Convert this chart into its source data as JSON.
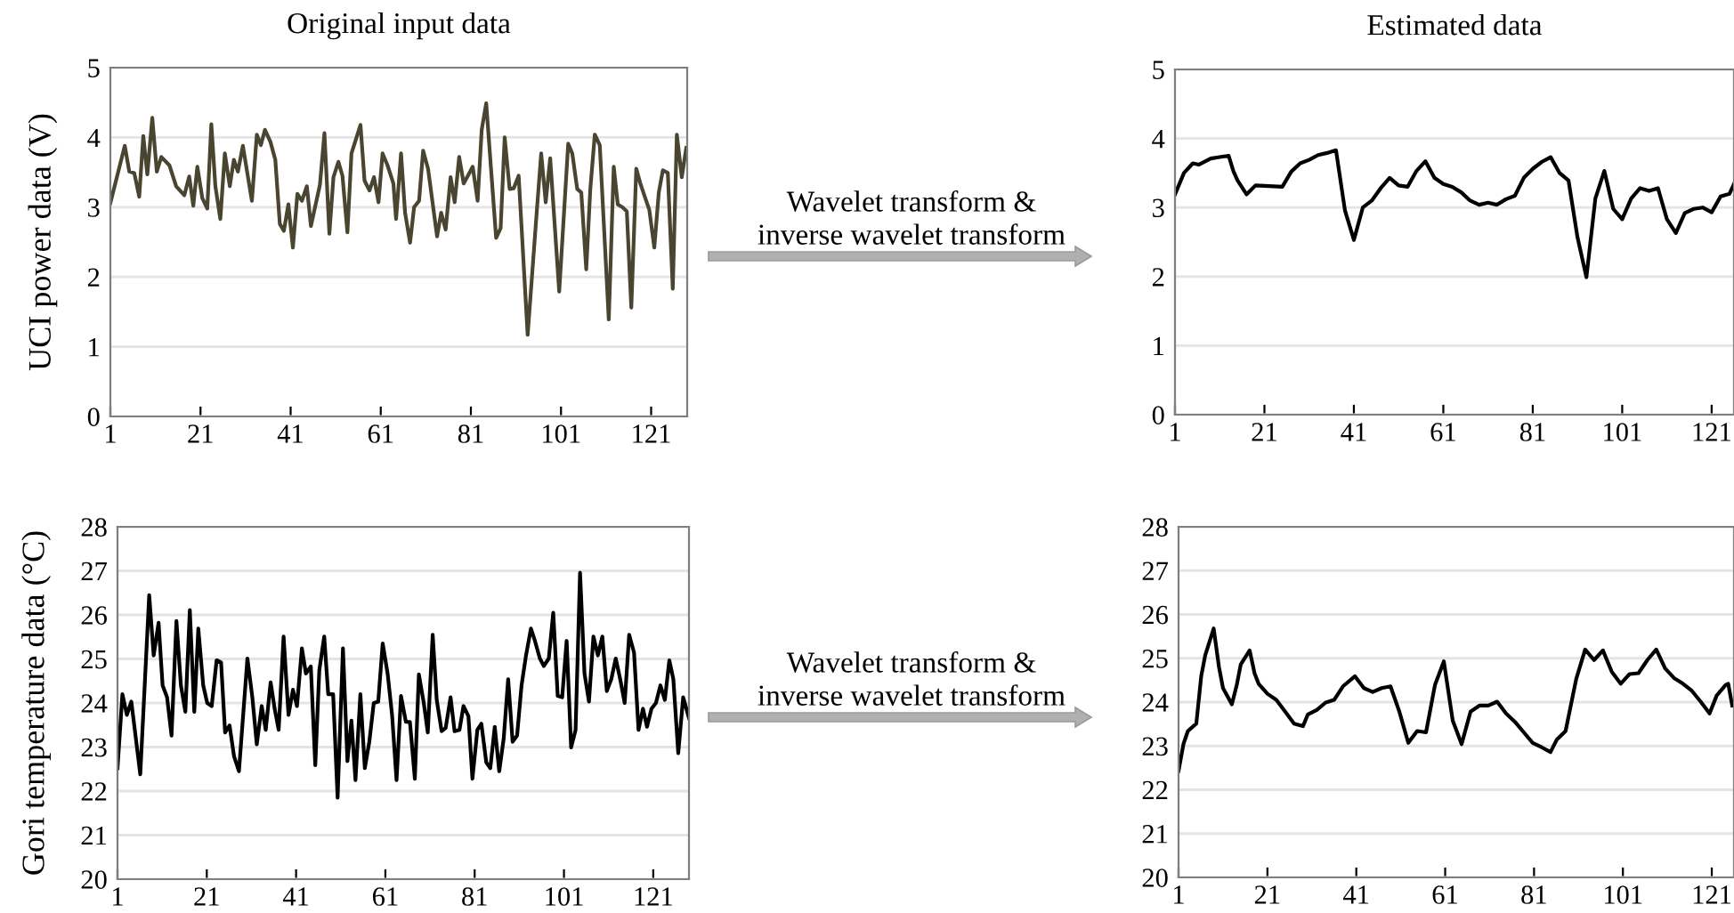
{
  "chart_data": [
    {
      "type": "line",
      "title": "Original input data",
      "ylabel": "UCI power data (V)",
      "annotations": [
        "Wavelet transform &\ninverse wavelet transform"
      ],
      "xlim": [
        1,
        129
      ],
      "ylim": [
        0,
        5
      ],
      "xticks": [
        1,
        21,
        41,
        61,
        81,
        101,
        121
      ],
      "yticks": [
        0,
        1,
        2,
        3,
        4,
        5
      ],
      "grid": "y",
      "series": [
        {
          "color": "#4a4530",
          "x": [
            1,
            4.2,
            5.2,
            6.3,
            7.4,
            8.3,
            9.2,
            10.3,
            11.3,
            12.3,
            14.1,
            15.6,
            17.4,
            18.5,
            19.4,
            20.3,
            21.4,
            22.5,
            23.4,
            24.3,
            25.4,
            26.4,
            27.5,
            28.4,
            29.3,
            30.4,
            32.4,
            33.5,
            34.4,
            35.3,
            36.5,
            37.6,
            38.6,
            39.5,
            40.5,
            41.5,
            42.5,
            43.5,
            44.6,
            45.5,
            47.5,
            48.5,
            49.6,
            50.5,
            51.6,
            52.5,
            53.6,
            54.5,
            56.5,
            57.4,
            58.5,
            59.5,
            60.5,
            61.4,
            62.5,
            63.8,
            64.4,
            65.5,
            66.4,
            67.5,
            68.4,
            69.5,
            70.4,
            71.5,
            73.5,
            74.4,
            75.4,
            76.5,
            77.4,
            78.4,
            79.4,
            80.5,
            81.4,
            82.5,
            83.4,
            84.4,
            86.6,
            87.6,
            88.5,
            89.6,
            90.5,
            91.6,
            93.6,
            95.6,
            96.6,
            97.6,
            98.6,
            100.6,
            102.6,
            103.5,
            104.6,
            105.5,
            106.6,
            107.5,
            108.5,
            109.6,
            111.6,
            112.7,
            113.6,
            114.6,
            115.6,
            116.6,
            117.7,
            118.6,
            119.7,
            120.6,
            121.7,
            122.7,
            123.6,
            124.7,
            125.8,
            126.7,
            127.8,
            128.8
          ],
          "values": [
            3.06,
            3.88,
            3.51,
            3.49,
            3.15,
            4.02,
            3.47,
            4.28,
            3.51,
            3.72,
            3.6,
            3.3,
            3.17,
            3.44,
            3.02,
            3.58,
            3.13,
            2.98,
            4.19,
            3.3,
            2.83,
            3.77,
            3.3,
            3.68,
            3.51,
            3.88,
            3.09,
            4.04,
            3.89,
            4.11,
            3.94,
            3.68,
            2.76,
            2.66,
            3.04,
            2.42,
            3.19,
            3.09,
            3.3,
            2.73,
            3.32,
            4.06,
            2.62,
            3.43,
            3.65,
            3.45,
            2.64,
            3.77,
            4.18,
            3.38,
            3.24,
            3.43,
            3.07,
            3.77,
            3.6,
            3.34,
            2.83,
            3.77,
            2.92,
            2.49,
            3.0,
            3.09,
            3.81,
            3.55,
            2.58,
            2.92,
            2.68,
            3.43,
            3.07,
            3.72,
            3.34,
            3.47,
            3.58,
            3.09,
            4.11,
            4.49,
            2.56,
            2.7,
            4.0,
            3.26,
            3.27,
            3.45,
            1.17,
            2.92,
            3.77,
            3.07,
            3.7,
            1.79,
            3.91,
            3.77,
            3.26,
            3.21,
            2.11,
            3.26,
            4.04,
            3.89,
            1.39,
            3.58,
            3.04,
            3.0,
            2.94,
            1.56,
            3.55,
            3.34,
            3.13,
            2.96,
            2.42,
            3.21,
            3.53,
            3.49,
            1.83,
            4.04,
            3.43,
            3.85
          ]
        }
      ]
    },
    {
      "type": "line",
      "title": "Estimated data",
      "xlim": [
        1,
        126
      ],
      "ylim": [
        0,
        5
      ],
      "xticks": [
        1,
        21,
        41,
        61,
        81,
        101,
        121
      ],
      "yticks": [
        0,
        1,
        2,
        3,
        4,
        5
      ],
      "grid": "y",
      "series": [
        {
          "color": "#000000",
          "x": [
            1,
            3,
            5,
            6.3,
            9,
            11,
            13,
            14.1,
            15,
            17,
            19,
            25,
            27,
            29,
            31,
            33,
            35,
            37,
            39,
            41,
            43,
            45,
            47,
            49,
            51,
            53,
            55,
            57,
            59,
            61,
            63,
            65,
            67,
            69,
            71,
            73,
            75,
            77,
            79,
            81,
            83,
            85,
            87,
            89,
            91,
            93,
            95,
            97,
            99,
            101,
            103,
            105,
            107,
            109,
            111,
            113,
            115,
            117,
            119,
            121,
            123,
            125,
            126
          ],
          "values": [
            3.19,
            3.5,
            3.64,
            3.62,
            3.71,
            3.73,
            3.75,
            3.52,
            3.39,
            3.19,
            3.32,
            3.3,
            3.52,
            3.64,
            3.69,
            3.76,
            3.79,
            3.83,
            2.96,
            2.53,
            3.0,
            3.1,
            3.28,
            3.43,
            3.32,
            3.3,
            3.53,
            3.67,
            3.43,
            3.34,
            3.3,
            3.22,
            3.1,
            3.04,
            3.07,
            3.04,
            3.12,
            3.17,
            3.43,
            3.56,
            3.66,
            3.73,
            3.5,
            3.39,
            2.57,
            1.99,
            3.13,
            3.53,
            2.98,
            2.83,
            3.13,
            3.28,
            3.24,
            3.28,
            2.83,
            2.63,
            2.92,
            2.98,
            3.0,
            2.93,
            3.16,
            3.2,
            3.34
          ]
        }
      ]
    },
    {
      "type": "line",
      "ylabel": "Gori temperature data (°C)",
      "annotations": [
        "Wavelet transform &\ninverse wavelet transform"
      ],
      "xlim": [
        1,
        129
      ],
      "ylim": [
        20,
        28
      ],
      "xticks": [
        1,
        21,
        41,
        61,
        81,
        101,
        121
      ],
      "yticks": [
        20,
        21,
        22,
        23,
        24,
        25,
        26,
        27,
        28
      ],
      "grid": "y",
      "series": [
        {
          "color": "#000000",
          "x": [
            1,
            2.1,
            3.1,
            4.1,
            6.1,
            8.1,
            9.1,
            10.2,
            11.1,
            12.1,
            13.1,
            14.2,
            15.2,
            16.2,
            17.2,
            18.2,
            19.1,
            20.2,
            21.1,
            22.1,
            23.2,
            24.2,
            25.1,
            26.1,
            27.1,
            28.2,
            30.1,
            31.2,
            32.2,
            33.3,
            34.2,
            35.3,
            36.2,
            37.1,
            38.2,
            39.3,
            40.3,
            41.2,
            42.3,
            43.2,
            44.3,
            45.3,
            46.2,
            47.3,
            48.2,
            49.3,
            50.3,
            51.5,
            52.5,
            53.4,
            54.3,
            55.4,
            56.4,
            57.4,
            58.4,
            59.4,
            60.4,
            61.5,
            62.5,
            63.5,
            64.5,
            65.6,
            66.5,
            67.6,
            68.5,
            69.6,
            70.5,
            71.6,
            72.5,
            73.6,
            74.5,
            75.6,
            76.5,
            77.6,
            78.5,
            79.6,
            80.5,
            81.6,
            82.5,
            83.6,
            84.5,
            85.5,
            86.5,
            87.5,
            88.5,
            89.5,
            90.5,
            91.5,
            92.5,
            93.6,
            94.5,
            95.6,
            96.5,
            97.6,
            98.6,
            99.6,
            100.6,
            101.6,
            102.6,
            103.6,
            104.6,
            105.6,
            106.6,
            107.6,
            108.6,
            109.6,
            110.6,
            111.6,
            112.6,
            113.6,
            114.6,
            115.6,
            116.7,
            117.7,
            118.7,
            119.6,
            120.6,
            121.6,
            122.6,
            123.6,
            124.6,
            125.5,
            126.6,
            127.7,
            129
          ],
          "values": [
            22.52,
            24.2,
            23.73,
            24.03,
            22.38,
            26.45,
            25.08,
            25.82,
            24.4,
            24.13,
            23.26,
            25.86,
            24.4,
            23.8,
            26.11,
            23.8,
            25.69,
            24.4,
            24.0,
            23.93,
            24.97,
            24.92,
            23.33,
            23.49,
            22.79,
            22.45,
            25.01,
            24.13,
            23.06,
            23.93,
            23.39,
            24.47,
            23.87,
            23.39,
            25.51,
            23.73,
            24.3,
            23.93,
            25.24,
            24.67,
            24.83,
            22.59,
            24.74,
            25.51,
            24.2,
            24.2,
            21.85,
            25.24,
            22.68,
            23.6,
            22.25,
            24.2,
            22.52,
            23.12,
            24.0,
            24.03,
            25.35,
            24.67,
            23.73,
            22.25,
            24.16,
            23.57,
            23.57,
            22.28,
            24.65,
            24.0,
            23.33,
            25.55,
            24.07,
            23.36,
            23.43,
            24.13,
            23.36,
            23.39,
            23.93,
            23.7,
            22.28,
            23.39,
            23.53,
            22.65,
            22.52,
            23.46,
            22.45,
            23.19,
            24.54,
            23.12,
            23.26,
            24.4,
            25.08,
            25.69,
            25.41,
            25.01,
            24.84,
            25.01,
            26.05,
            24.16,
            24.13,
            25.41,
            22.99,
            23.39,
            26.96,
            24.67,
            24.03,
            25.51,
            25.08,
            25.51,
            24.27,
            24.54,
            25.01,
            24.54,
            24.0,
            25.55,
            25.14,
            23.39,
            23.87,
            23.46,
            23.87,
            24.0,
            24.4,
            24.07,
            24.97,
            24.54,
            22.86,
            24.13,
            23.66
          ]
        }
      ]
    },
    {
      "type": "line",
      "xlim": [
        1,
        126
      ],
      "ylim": [
        20,
        28
      ],
      "xticks": [
        1,
        21,
        41,
        61,
        81,
        101,
        121
      ],
      "yticks": [
        20,
        21,
        22,
        23,
        24,
        25,
        26,
        27,
        28
      ],
      "grid": "y",
      "series": [
        {
          "color": "#000000",
          "x": [
            1,
            2.1,
            3.1,
            5,
            6.1,
            7,
            8.9,
            10.1,
            11,
            13,
            14.1,
            15,
            17,
            18.1,
            19,
            21,
            23,
            25,
            27,
            29,
            30.1,
            32.1,
            34.1,
            36,
            38,
            40.7,
            42.7,
            44.7,
            46.7,
            48.7,
            50.7,
            52.7,
            54.7,
            56.7,
            58.7,
            60.7,
            62.7,
            64.7,
            66.7,
            68.7,
            70.7,
            72.7,
            74.7,
            76.7,
            78.7,
            80.7,
            82.7,
            84.7,
            86.1,
            88.1,
            90.5,
            92.5,
            94.5,
            96.5,
            98.5,
            100.5,
            102.5,
            104.5,
            106.5,
            108.5,
            110.5,
            112.5,
            114.5,
            116.5,
            118.5,
            120.5,
            122.1,
            124.1,
            124.7,
            125.6
          ],
          "values": [
            22.43,
            23.04,
            23.34,
            23.51,
            24.59,
            25.07,
            25.68,
            24.8,
            24.32,
            23.95,
            24.39,
            24.86,
            25.18,
            24.66,
            24.42,
            24.19,
            24.05,
            23.78,
            23.51,
            23.45,
            23.72,
            23.82,
            23.99,
            24.05,
            24.36,
            24.59,
            24.32,
            24.23,
            24.32,
            24.36,
            23.78,
            23.07,
            23.34,
            23.31,
            24.39,
            24.93,
            23.58,
            23.04,
            23.78,
            23.92,
            23.92,
            24.01,
            23.74,
            23.55,
            23.31,
            23.07,
            22.97,
            22.86,
            23.14,
            23.34,
            24.53,
            25.2,
            24.96,
            25.18,
            24.69,
            24.42,
            24.64,
            24.66,
            24.96,
            25.2,
            24.77,
            24.55,
            24.42,
            24.26,
            24.01,
            23.74,
            24.15,
            24.39,
            24.42,
            23.92
          ]
        }
      ]
    }
  ]
}
